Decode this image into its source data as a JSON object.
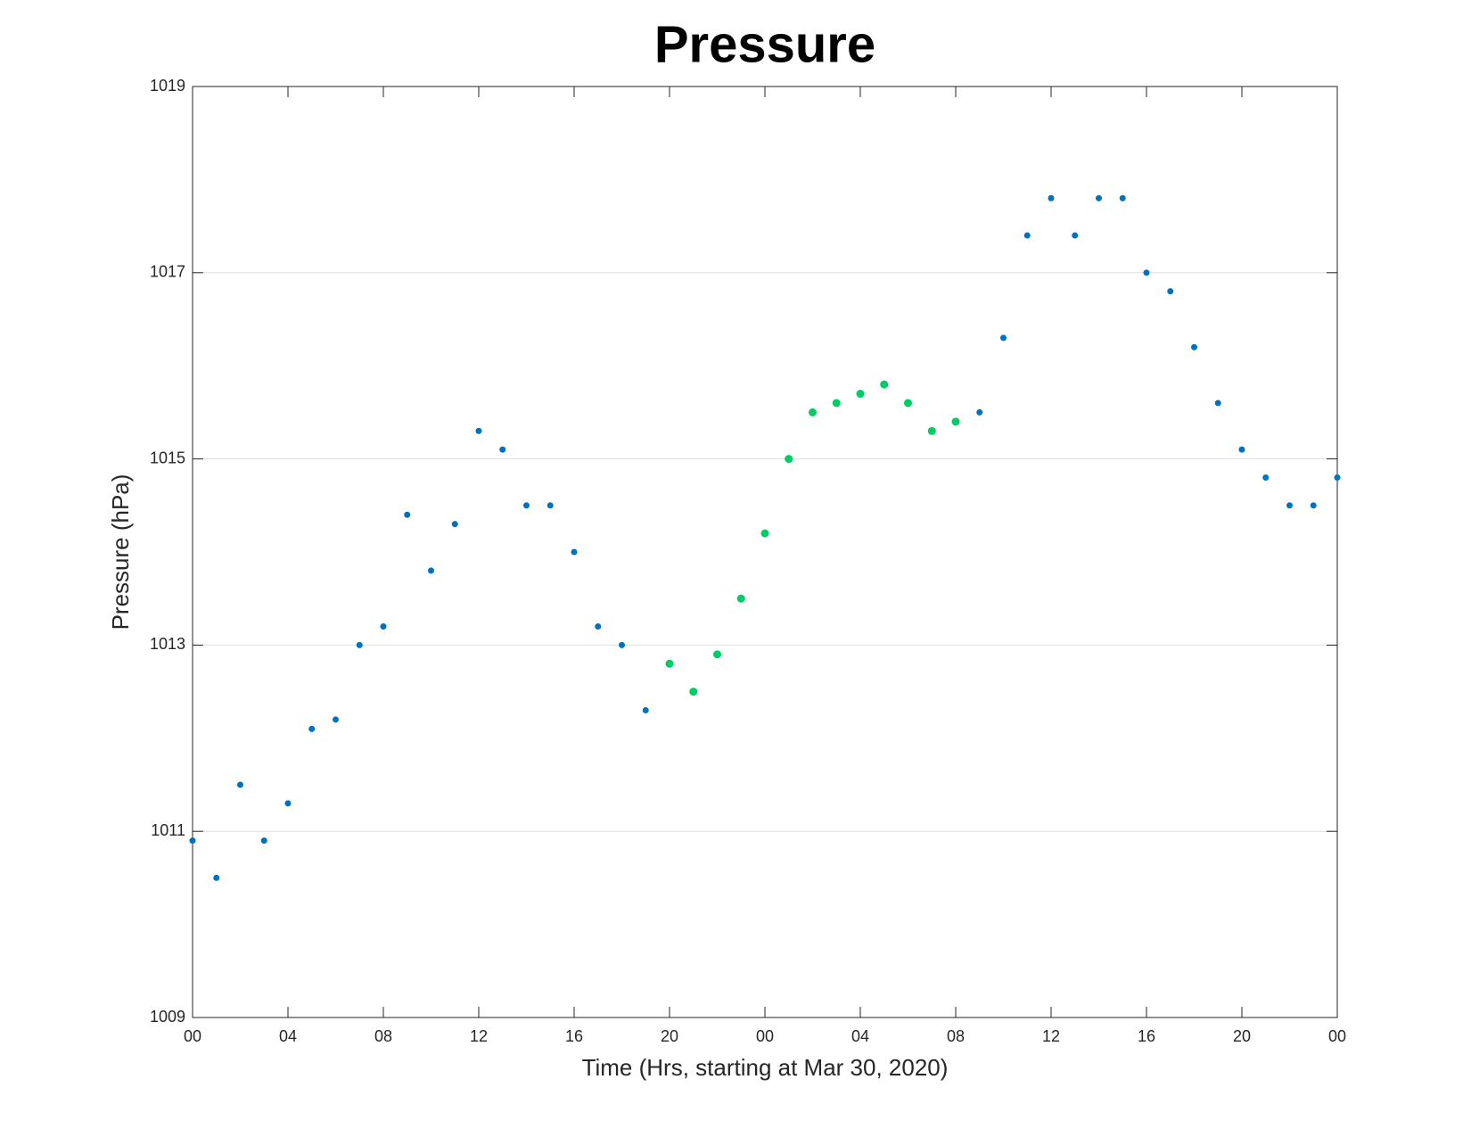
{
  "chart_data": {
    "type": "scatter",
    "title": "Pressure",
    "xlabel": "Time (Hrs, starting at Mar 30, 2020)",
    "ylabel": "Pressure (hPa)",
    "xlim": [
      0,
      48
    ],
    "xticks": [
      {
        "value": 0,
        "label": "00"
      },
      {
        "value": 4,
        "label": "04"
      },
      {
        "value": 8,
        "label": "08"
      },
      {
        "value": 12,
        "label": "12"
      },
      {
        "value": 16,
        "label": "16"
      },
      {
        "value": 20,
        "label": "20"
      },
      {
        "value": 24,
        "label": "00"
      },
      {
        "value": 28,
        "label": "04"
      },
      {
        "value": 32,
        "label": "08"
      },
      {
        "value": 36,
        "label": "12"
      },
      {
        "value": 40,
        "label": "16"
      },
      {
        "value": 44,
        "label": "20"
      },
      {
        "value": 48,
        "label": "00"
      }
    ],
    "ylim": [
      1009,
      1019
    ],
    "yticks": [
      1009,
      1011,
      1013,
      1015,
      1017,
      1019
    ],
    "grid": true,
    "series": [
      {
        "color": "#0072bd",
        "x": [
          0,
          1,
          2,
          3,
          4,
          5,
          6,
          7,
          8,
          9,
          10,
          11,
          12,
          13,
          14,
          15,
          16,
          17,
          18,
          19,
          33,
          34,
          35,
          36,
          37,
          38,
          39,
          40,
          41,
          42,
          43,
          44,
          45,
          46,
          47,
          48
        ],
        "values": [
          1010.9,
          1010.5,
          1011.5,
          1010.9,
          1011.3,
          1012.1,
          1012.2,
          1013.0,
          1013.2,
          1014.4,
          1013.8,
          1014.3,
          1015.3,
          1015.1,
          1014.5,
          1014.5,
          1014.0,
          1013.2,
          1013.0,
          1012.3,
          1015.5,
          1016.3,
          1017.4,
          1017.8,
          1017.4,
          1017.8,
          1017.8,
          1017.0,
          1016.8,
          1016.2,
          1015.6,
          1015.1,
          1014.8,
          1014.5,
          1014.5,
          1014.8
        ]
      },
      {
        "color": "#00cc66",
        "x": [
          20,
          21,
          22,
          23,
          24,
          25,
          26,
          27,
          28,
          29,
          30,
          31,
          32
        ],
        "values": [
          1012.8,
          1012.5,
          1012.9,
          1013.5,
          1014.2,
          1015.0,
          1015.5,
          1015.6,
          1015.7,
          1015.8,
          1015.6,
          1015.3,
          1015.4
        ]
      }
    ]
  }
}
